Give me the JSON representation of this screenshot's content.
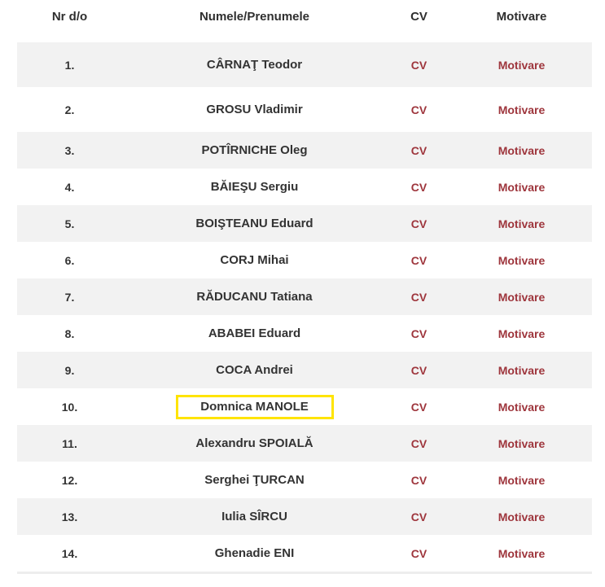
{
  "table": {
    "headers": {
      "nr": "Nr d/o",
      "name": "Numele/Prenumele",
      "cv": "CV",
      "motivare": "Motivare"
    },
    "rows": [
      {
        "nr": "1.",
        "name": "CÂRNAŢ Teodor",
        "cv_label": "CV",
        "motivare_label": "Motivare",
        "highlighted": false
      },
      {
        "nr": "2.",
        "name": "GROSU Vladimir",
        "cv_label": "CV",
        "motivare_label": "Motivare",
        "highlighted": false
      },
      {
        "nr": "3.",
        "name": "POTÎRNICHE Oleg",
        "cv_label": "CV",
        "motivare_label": "Motivare",
        "highlighted": false
      },
      {
        "nr": "4.",
        "name": "BĂIEŞU Sergiu",
        "cv_label": "CV",
        "motivare_label": "Motivare",
        "highlighted": false
      },
      {
        "nr": "5.",
        "name": "BOIŞTEANU Eduard",
        "cv_label": "CV",
        "motivare_label": "Motivare",
        "highlighted": false
      },
      {
        "nr": "6.",
        "name": "CORJ Mihai",
        "cv_label": "CV",
        "motivare_label": "Motivare",
        "highlighted": false
      },
      {
        "nr": "7.",
        "name": "RĂDUCANU Tatiana",
        "cv_label": "CV",
        "motivare_label": "Motivare",
        "highlighted": false
      },
      {
        "nr": "8.",
        "name": "ABABEI Eduard",
        "cv_label": "CV",
        "motivare_label": "Motivare",
        "highlighted": false
      },
      {
        "nr": "9.",
        "name": "COCA Andrei",
        "cv_label": "CV",
        "motivare_label": "Motivare",
        "highlighted": false
      },
      {
        "nr": "10.",
        "name": "Domnica MANOLE",
        "cv_label": "CV",
        "motivare_label": "Motivare",
        "highlighted": true
      },
      {
        "nr": "11.",
        "name": "Alexandru SPOIALĂ",
        "cv_label": "CV",
        "motivare_label": "Motivare",
        "highlighted": false
      },
      {
        "nr": "12.",
        "name": "Serghei ŢURCAN",
        "cv_label": "CV",
        "motivare_label": "Motivare",
        "highlighted": false
      },
      {
        "nr": "13.",
        "name": "Iulia SÎRCU",
        "cv_label": "CV",
        "motivare_label": "Motivare",
        "highlighted": false
      },
      {
        "nr": "14.",
        "name": "Ghenadie ENI",
        "cv_label": "CV",
        "motivare_label": "Motivare",
        "highlighted": false
      }
    ],
    "colors": {
      "accent_red": "#9e353c",
      "alt_row_bg": "#f2f2f2",
      "heading_text": "#2f2f2f",
      "body_text": "#333333",
      "highlight_yellow": "#ffe400",
      "divider": "#ededed"
    }
  }
}
